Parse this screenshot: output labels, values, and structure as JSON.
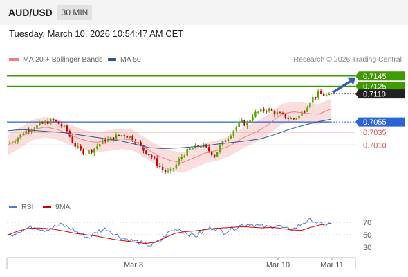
{
  "header": {
    "symbol": "AUD/USD",
    "timeframe": "30 MIN"
  },
  "timestamp": "Tuesday, March 10, 2026 10:54:47 AM CET",
  "legend": {
    "ma20_label": "MA 20 + Bollinger Bands",
    "ma50_label": "MA 50",
    "credit": "Research © 2026 Trading Central",
    "rsi_label": "RSI",
    "rsi_ma_label": "9MA"
  },
  "colors": {
    "bull": "#58a700",
    "bear": "#d00000",
    "ma20": "#f08080",
    "ma50": "#2f5597",
    "bb_fill": "#fadede",
    "support": "#2b63d9",
    "resistance": "#3f9b00",
    "current": "#222222",
    "red_level": "#d9534f",
    "arrow": "#2f5fae",
    "rsi": "#4f7ad6",
    "rsi_ma": "#d40000"
  },
  "chart_data": {
    "type": "candlestick",
    "symbol": "AUD/USD",
    "timeframe": "30 MIN",
    "ylim": [
      0.6925,
      0.7165
    ],
    "x_ticks": [
      "Mar 8",
      "Mar 10",
      "Mar 11"
    ],
    "levels": [
      {
        "value": 0.7145,
        "label": "0.7145",
        "kind": "resistance"
      },
      {
        "value": 0.7125,
        "label": "0.7125",
        "kind": "resistance"
      },
      {
        "value": 0.711,
        "label": "0.7110",
        "kind": "current"
      },
      {
        "value": 0.7055,
        "label": "0.7055",
        "kind": "support"
      },
      {
        "value": 0.7035,
        "label": "0.7035",
        "kind": "minor"
      },
      {
        "value": 0.701,
        "label": "0.7010",
        "kind": "minor"
      }
    ],
    "anchors": [
      0.7013,
      0.702,
      0.703,
      0.704,
      0.7045,
      0.705,
      0.7055,
      0.7058,
      0.705,
      0.704,
      0.7015,
      0.7,
      0.6995,
      0.7,
      0.701,
      0.702,
      0.7022,
      0.7028,
      0.703,
      0.7025,
      0.7015,
      0.7,
      0.699,
      0.6975,
      0.696,
      0.6955,
      0.697,
      0.699,
      0.7,
      0.7005,
      0.701,
      0.7,
      0.699,
      0.701,
      0.7025,
      0.704,
      0.7055,
      0.705,
      0.707,
      0.7075,
      0.708,
      0.7075,
      0.707,
      0.7065,
      0.706,
      0.7065,
      0.708,
      0.71,
      0.711,
      0.7108,
      0.7105
    ],
    "ma20": [
      0.701,
      0.7025,
      0.704,
      0.7045,
      0.704,
      0.703,
      0.702,
      0.7015,
      0.7018,
      0.7022,
      0.702,
      0.7005,
      0.699,
      0.698,
      0.6975,
      0.6985,
      0.6995,
      0.7,
      0.701,
      0.7025,
      0.7035,
      0.705,
      0.707,
      0.7075,
      0.7072,
      0.707,
      0.708
    ],
    "ma50": [
      0.7038,
      0.704,
      0.7038,
      0.7036,
      0.7034,
      0.703,
      0.7026,
      0.7022,
      0.7018,
      0.7012,
      0.7005,
      0.7003,
      0.7004,
      0.7006,
      0.7008,
      0.7012,
      0.7015,
      0.7018,
      0.7022,
      0.703,
      0.704,
      0.7048,
      0.7055,
      0.706
    ],
    "bb_half_width": 0.002,
    "rsi": {
      "ylim": [
        20,
        80
      ],
      "ticks": [
        70,
        50,
        30
      ],
      "rsi_anchors": [
        48,
        55,
        60,
        63,
        58,
        62,
        66,
        60,
        52,
        45,
        56,
        60,
        50,
        44,
        40,
        36,
        33,
        40,
        55,
        60,
        52,
        48,
        58,
        62,
        54,
        60,
        65,
        68,
        64,
        62,
        66,
        58,
        60,
        70,
        74,
        65,
        68
      ],
      "ma_anchors": [
        50,
        56,
        60,
        61,
        60,
        58,
        55,
        52,
        50,
        48,
        45,
        42,
        40,
        38,
        36,
        38,
        45,
        52,
        55,
        56,
        58,
        60,
        61,
        62,
        63,
        62,
        61,
        62,
        60,
        58,
        57,
        62,
        66,
        68
      ]
    }
  }
}
